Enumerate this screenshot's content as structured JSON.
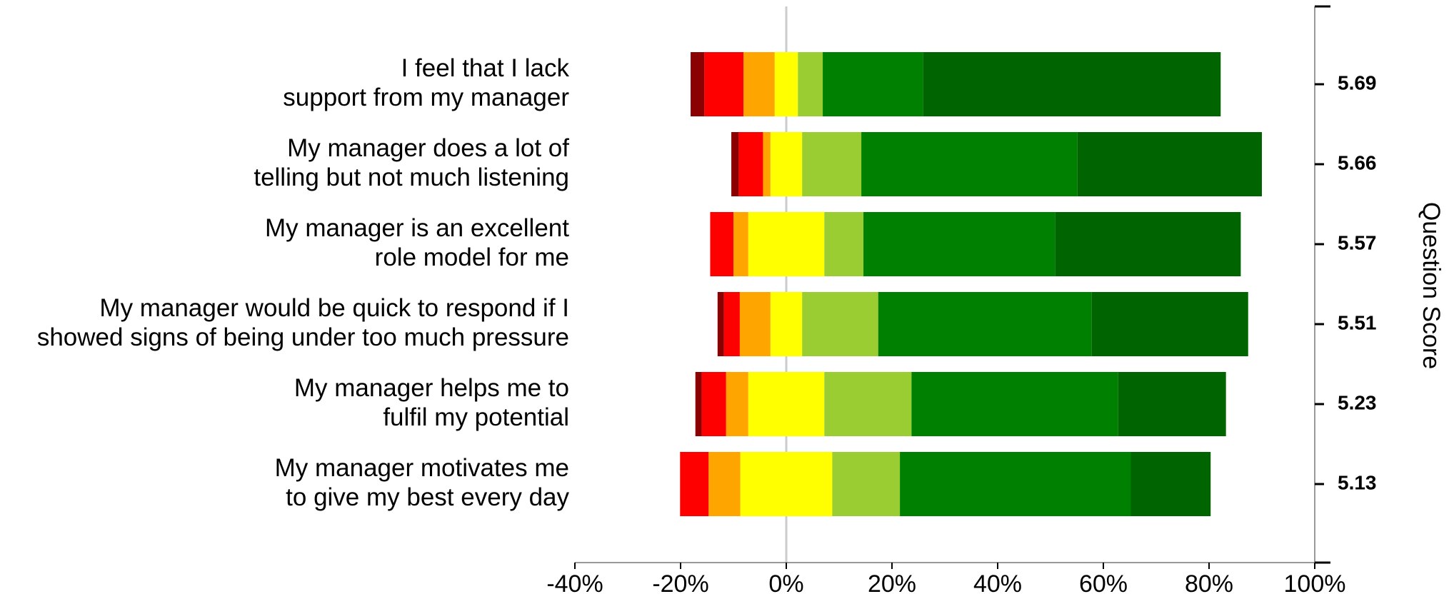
{
  "chart_data": {
    "type": "diverging_bar",
    "categories": [
      [
        "I feel that I lack",
        "support from my manager"
      ],
      [
        "My manager does a lot of",
        "telling but not much listening"
      ],
      [
        "My manager is an excellent",
        "role model for me"
      ],
      [
        "My manager would be quick to respond if I",
        "showed signs of being under too much pressure"
      ],
      [
        "My manager helps me to",
        "fulfil my potential"
      ],
      [
        "My manager motivates me",
        "to give my best every day"
      ]
    ],
    "series": [
      {
        "color": "#8b0000",
        "values": [
          2.6,
          1.4,
          0,
          1.2,
          1.2,
          0
        ]
      },
      {
        "color": "#ff0000",
        "values": [
          7.4,
          4.6,
          4.4,
          3.0,
          4.6,
          5.4
        ]
      },
      {
        "color": "#ffa500",
        "values": [
          5.9,
          1.4,
          2.8,
          5.8,
          4.2,
          6.0
        ]
      },
      {
        "color": "#ffff00",
        "values": [
          4.4,
          6.0,
          14.4,
          6.0,
          14.4,
          17.4
        ]
      },
      {
        "color": "#9acd32",
        "values": [
          4.7,
          11.2,
          7.4,
          14.4,
          16.5,
          12.8
        ]
      },
      {
        "color": "#008000",
        "values": [
          19.0,
          40.9,
          36.3,
          40.4,
          39.1,
          43.7
        ]
      },
      {
        "color": "#006400",
        "values": [
          56.3,
          34.9,
          35.1,
          29.6,
          20.4,
          15.1
        ]
      }
    ],
    "xlim": [
      -40,
      100
    ],
    "xticks": [
      {
        "value": -40,
        "label": "-40%"
      },
      {
        "value": -20,
        "label": "-20%"
      },
      {
        "value": 0,
        "label": "0%"
      },
      {
        "value": 20,
        "label": "20%"
      },
      {
        "value": 40,
        "label": "40%"
      },
      {
        "value": 60,
        "label": "60%"
      },
      {
        "value": 80,
        "label": "80%"
      },
      {
        "value": 100,
        "label": "100%"
      }
    ],
    "scores": [
      5.69,
      5.66,
      5.57,
      5.51,
      5.23,
      5.13
    ],
    "y2label": "Question Score"
  }
}
